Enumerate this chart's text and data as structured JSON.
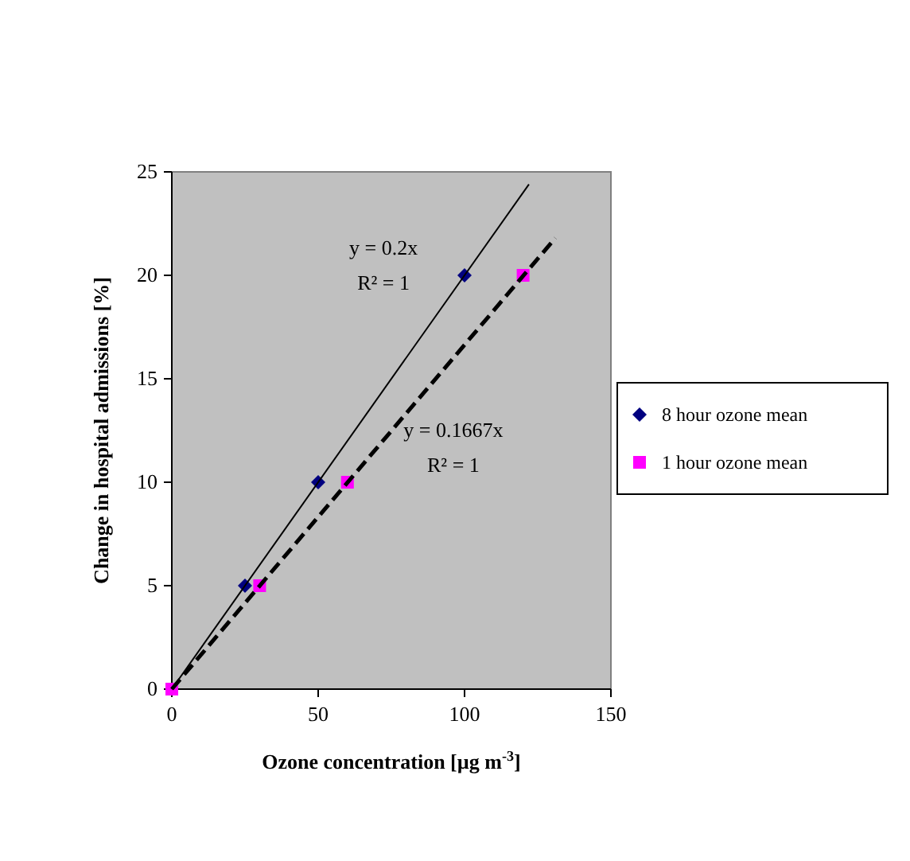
{
  "chart_data": {
    "type": "scatter",
    "xlabel": "Ozone concentration [µg m$^{-3}$]",
    "ylabel": "Change in hospital admissions [%]",
    "xlim": [
      0,
      150
    ],
    "xticks": [
      0,
      50,
      100,
      150
    ],
    "ylim": [
      0,
      25
    ],
    "yticks": [
      0,
      5,
      10,
      15,
      20,
      25
    ],
    "grid": false,
    "legend": "right",
    "series": [
      {
        "name": "8 hour ozone mean",
        "color": "#000080",
        "marker": "diamond",
        "x": [
          25,
          50,
          100
        ],
        "values": [
          5,
          10,
          20
        ]
      },
      {
        "name": "1 hour ozone mean",
        "color": "#ff00ff",
        "marker": "square",
        "x": [
          0,
          30,
          60,
          120
        ],
        "values": [
          0,
          5,
          10,
          20
        ]
      },
      {
        "type": "line",
        "color": "#000000",
        "marker": "none",
        "line_style": "solid",
        "x": [
          0,
          122
        ],
        "values": [
          0,
          24.4
        ]
      },
      {
        "type": "line",
        "color": "#000000",
        "marker": "none",
        "line_style": "dashed",
        "x": [
          0,
          131
        ],
        "values": [
          0,
          21.8
        ]
      }
    ],
    "annotations": [
      "y = 0.2x",
      "R² = 1",
      "y = 0.1667x",
      "R² = 1"
    ]
  }
}
